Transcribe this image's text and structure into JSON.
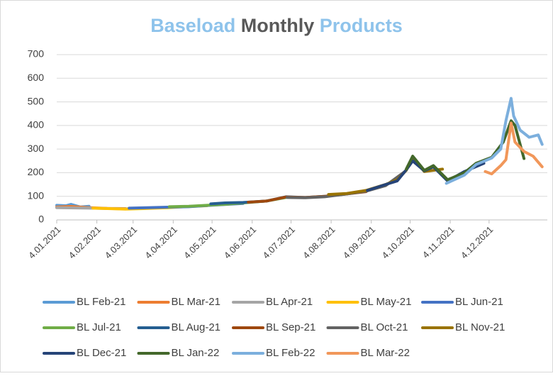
{
  "chart_data": {
    "type": "line",
    "title": [
      {
        "text": "Baseload",
        "color": "#8ec3eb"
      },
      {
        "text": "Monthly",
        "color": "#595959"
      },
      {
        "text": "Products",
        "color": "#8ec3eb"
      }
    ],
    "xlim": [
      "2021-01-04",
      "2022-01-18"
    ],
    "xticks": [
      {
        "value": "2021-01-04",
        "label": "4.01.2021"
      },
      {
        "value": "2021-02-04",
        "label": "4.02.2021"
      },
      {
        "value": "2021-03-04",
        "label": "4.03.2021"
      },
      {
        "value": "2021-04-04",
        "label": "4.04.2021"
      },
      {
        "value": "2021-05-04",
        "label": "4.05.2021"
      },
      {
        "value": "2021-06-04",
        "label": "4.06.2021"
      },
      {
        "value": "2021-07-04",
        "label": "4.07.2021"
      },
      {
        "value": "2021-08-04",
        "label": "4.08.2021"
      },
      {
        "value": "2021-09-04",
        "label": "4.09.2021"
      },
      {
        "value": "2021-10-04",
        "label": "4.10.2021"
      },
      {
        "value": "2021-11-04",
        "label": "4.11.2021"
      },
      {
        "value": "2021-12-04",
        "label": "4.12.2021"
      }
    ],
    "ylim": [
      0,
      700
    ],
    "yticks": [
      0,
      100,
      200,
      300,
      400,
      500,
      600,
      700
    ],
    "grid": true,
    "legend": "bottom",
    "series": [
      {
        "name": "BL Feb-21",
        "color": "#5b9bd5",
        "x": [
          "2021-01-04",
          "2021-01-11",
          "2021-01-15",
          "2021-01-22",
          "2021-01-29"
        ],
        "values": [
          62,
          60,
          66,
          55,
          58
        ]
      },
      {
        "name": "BL Mar-21",
        "color": "#ed7d31",
        "x": [
          "2021-01-04",
          "2021-01-15",
          "2021-01-29",
          "2021-02-12",
          "2021-02-26"
        ],
        "values": [
          55,
          57,
          52,
          49,
          48
        ]
      },
      {
        "name": "BL Apr-21",
        "color": "#a5a5a5",
        "x": [
          "2021-01-04",
          "2021-01-29",
          "2021-02-26",
          "2021-03-12",
          "2021-03-31"
        ],
        "values": [
          52,
          50,
          47,
          50,
          53
        ]
      },
      {
        "name": "BL May-21",
        "color": "#ffc000",
        "x": [
          "2021-02-01",
          "2021-02-26",
          "2021-03-12",
          "2021-03-31",
          "2021-04-16",
          "2021-04-30"
        ],
        "values": [
          50,
          46,
          48,
          52,
          57,
          60
        ]
      },
      {
        "name": "BL Jun-21",
        "color": "#4472c4",
        "x": [
          "2021-03-01",
          "2021-03-15",
          "2021-03-31",
          "2021-04-16",
          "2021-05-03",
          "2021-05-28"
        ],
        "values": [
          50,
          52,
          54,
          56,
          62,
          70
        ]
      },
      {
        "name": "BL Jul-21",
        "color": "#70ad47",
        "x": [
          "2021-04-01",
          "2021-04-16",
          "2021-04-30",
          "2021-05-14",
          "2021-05-28",
          "2021-06-15",
          "2021-06-30"
        ],
        "values": [
          56,
          58,
          62,
          66,
          72,
          80,
          95
        ]
      },
      {
        "name": "BL Aug-21",
        "color": "#255e91",
        "x": [
          "2021-05-03",
          "2021-05-14",
          "2021-05-28",
          "2021-06-15",
          "2021-06-30",
          "2021-07-15",
          "2021-07-30"
        ],
        "values": [
          68,
          72,
          74,
          80,
          98,
          95,
          100
        ]
      },
      {
        "name": "BL Sep-21",
        "color": "#9e480e",
        "x": [
          "2021-06-01",
          "2021-06-15",
          "2021-06-30",
          "2021-07-15",
          "2021-07-30",
          "2021-08-16",
          "2021-08-31"
        ],
        "values": [
          75,
          80,
          97,
          95,
          100,
          110,
          120
        ]
      },
      {
        "name": "BL Oct-21",
        "color": "#636363",
        "x": [
          "2021-07-01",
          "2021-07-15",
          "2021-07-30",
          "2021-08-16",
          "2021-08-31",
          "2021-09-15",
          "2021-09-30"
        ],
        "values": [
          95,
          94,
          98,
          110,
          122,
          145,
          205
        ]
      },
      {
        "name": "BL Nov-21",
        "color": "#997300",
        "x": [
          "2021-08-02",
          "2021-08-16",
          "2021-08-31",
          "2021-09-15",
          "2021-09-24",
          "2021-10-01",
          "2021-10-06",
          "2021-10-15",
          "2021-10-29"
        ],
        "values": [
          108,
          112,
          125,
          150,
          170,
          210,
          265,
          205,
          215
        ]
      },
      {
        "name": "BL Dec-21",
        "color": "#264478",
        "x": [
          "2021-09-01",
          "2021-09-15",
          "2021-09-24",
          "2021-10-01",
          "2021-10-06",
          "2021-10-15",
          "2021-10-22",
          "2021-11-02",
          "2021-11-15",
          "2021-11-30"
        ],
        "values": [
          125,
          150,
          165,
          212,
          250,
          208,
          225,
          165,
          205,
          240
        ]
      },
      {
        "name": "BL Jan-22",
        "color": "#43682b",
        "x": [
          "2021-10-01",
          "2021-10-06",
          "2021-10-15",
          "2021-10-22",
          "2021-11-02",
          "2021-11-15",
          "2021-11-24",
          "2021-12-06",
          "2021-12-15",
          "2021-12-21",
          "2021-12-24",
          "2021-12-31"
        ],
        "values": [
          215,
          270,
          210,
          230,
          170,
          200,
          240,
          265,
          330,
          420,
          400,
          260
        ]
      },
      {
        "name": "BL Feb-22",
        "color": "#7cafdd",
        "x": [
          "2021-11-01",
          "2021-11-05",
          "2021-11-15",
          "2021-11-24",
          "2021-12-06",
          "2021-12-13",
          "2021-12-17",
          "2021-12-21",
          "2021-12-23",
          "2021-12-28",
          "2022-01-04",
          "2022-01-11",
          "2022-01-14"
        ],
        "values": [
          155,
          165,
          190,
          235,
          262,
          300,
          420,
          515,
          440,
          380,
          350,
          360,
          320
        ]
      },
      {
        "name": "BL Mar-22",
        "color": "#f1975a",
        "x": [
          "2021-12-01",
          "2021-12-06",
          "2021-12-13",
          "2021-12-17",
          "2021-12-21",
          "2021-12-24",
          "2021-12-31",
          "2022-01-07",
          "2022-01-14"
        ],
        "values": [
          205,
          195,
          230,
          255,
          410,
          330,
          290,
          270,
          225
        ]
      }
    ]
  }
}
